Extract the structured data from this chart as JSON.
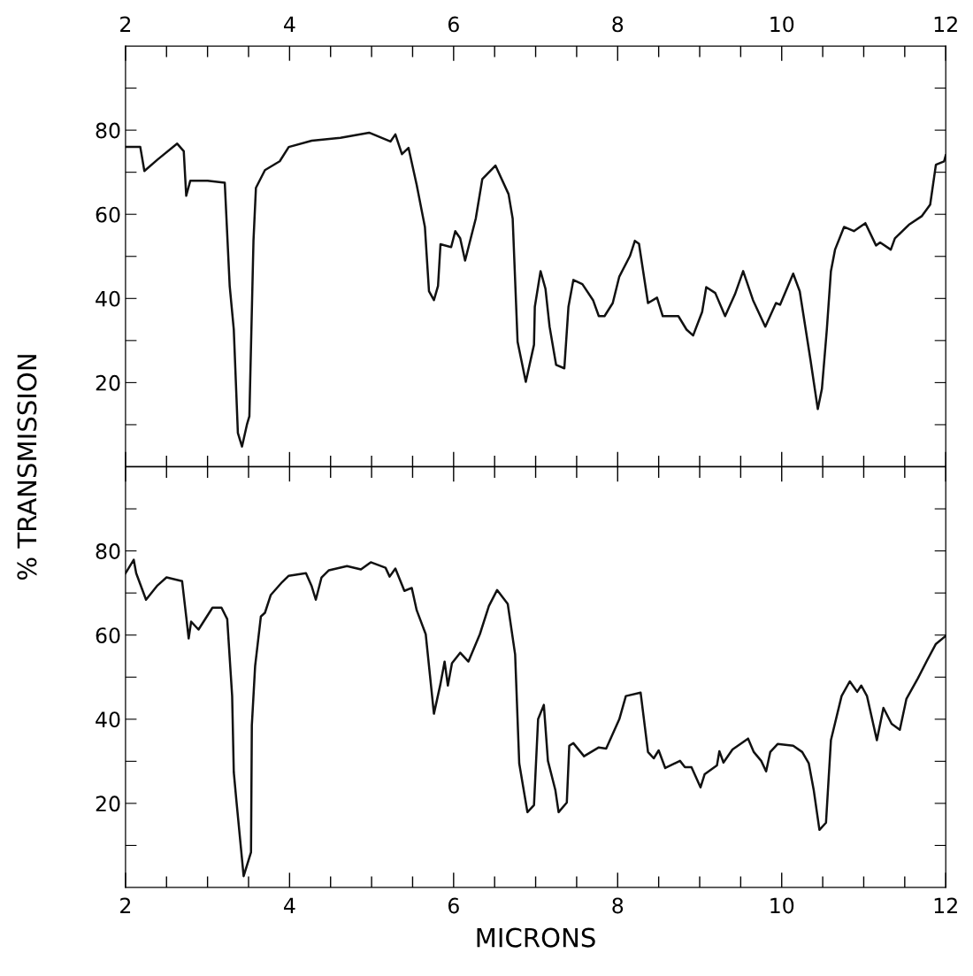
{
  "chart_data": [
    {
      "type": "line",
      "ylabel": "% TRANSMISSION",
      "xlim": [
        2,
        12
      ],
      "xticks": [
        2,
        {
          "value": 2.5,
          "label": null
        },
        {
          "value": 3,
          "label": null
        },
        {
          "value": 3.5,
          "label": null
        },
        4,
        {
          "value": 4.5,
          "label": null
        },
        {
          "value": 5,
          "label": null
        },
        {
          "value": 5.5,
          "label": null
        },
        6,
        {
          "value": 6.5,
          "label": null
        },
        {
          "value": 7,
          "label": null
        },
        {
          "value": 7.5,
          "label": null
        },
        8,
        {
          "value": 8.5,
          "label": null
        },
        {
          "value": 9,
          "label": null
        },
        {
          "value": 9.5,
          "label": null
        },
        10,
        {
          "value": 10.5,
          "label": null
        },
        {
          "value": 11,
          "label": null
        },
        {
          "value": 11.5,
          "label": null
        },
        12
      ],
      "ylim": [
        0,
        100
      ],
      "yticks": [
        {
          "value": 10,
          "label": null
        },
        20,
        {
          "value": 30,
          "label": null
        },
        40,
        {
          "value": 50,
          "label": null
        },
        60,
        {
          "value": 70,
          "label": null
        },
        80,
        {
          "value": 90,
          "label": null
        }
      ],
      "line_style": "solid",
      "series": [
        {
          "color": "#111111",
          "x": [
            2.0,
            2.18,
            2.23,
            2.39,
            2.63,
            2.71,
            2.74,
            2.79,
            3.0,
            3.21,
            3.27,
            3.32,
            3.37,
            3.42,
            3.48,
            3.51,
            3.56,
            3.59,
            3.7,
            3.88,
            3.99,
            4.27,
            4.62,
            4.97,
            5.23,
            5.29,
            5.37,
            5.45,
            5.55,
            5.65,
            5.7,
            5.76,
            5.81,
            5.84,
            5.97,
            6.02,
            6.08,
            6.14,
            6.27,
            6.35,
            6.51,
            6.67,
            6.72,
            6.78,
            6.88,
            6.98,
            6.99,
            7.06,
            7.12,
            7.17,
            7.25,
            7.35,
            7.4,
            7.46,
            7.57,
            7.7,
            7.77,
            7.84,
            7.94,
            8.02,
            8.15,
            8.21,
            8.26,
            8.37,
            8.48,
            8.55,
            8.74,
            8.84,
            8.92,
            9.03,
            9.08,
            9.19,
            9.31,
            9.43,
            9.53,
            9.65,
            9.8,
            9.93,
            9.98,
            10.14,
            10.22,
            10.35,
            10.44,
            10.49,
            10.55,
            10.6,
            10.65,
            10.76,
            10.88,
            11.02,
            11.15,
            11.2,
            11.33,
            11.38,
            11.55,
            11.71,
            11.81,
            11.88,
            11.98,
            12.0
          ],
          "values": [
            76,
            76,
            70.3,
            73,
            76.8,
            75,
            64.4,
            68,
            68,
            67.5,
            43,
            32.6,
            8,
            4.8,
            10,
            12,
            53.7,
            66.3,
            70.5,
            72.6,
            76,
            77.5,
            78.2,
            79.4,
            77.3,
            79,
            74.3,
            75.8,
            67,
            57,
            41.7,
            39.6,
            43,
            52.9,
            52.2,
            56,
            54.3,
            49,
            59,
            68.4,
            71.6,
            64.8,
            59,
            29.7,
            20.2,
            29,
            38,
            46.5,
            42.3,
            33.3,
            24.2,
            23.4,
            38,
            44.4,
            43.4,
            39.6,
            35.8,
            35.8,
            38.9,
            45.2,
            50.1,
            53.7,
            53,
            38.9,
            40.2,
            35.8,
            35.8,
            32.6,
            31.2,
            36.8,
            42.7,
            41.3,
            35.8,
            41,
            46.5,
            39.6,
            33.3,
            38.9,
            38.5,
            45.9,
            41.7,
            25.5,
            13.7,
            18.5,
            32.6,
            46.5,
            51.6,
            57,
            56,
            57.9,
            52.6,
            53.3,
            51.6,
            54.3,
            57.5,
            59.6,
            62.3,
            71.8,
            72.6,
            74
          ]
        }
      ]
    },
    {
      "type": "line",
      "xlabel": "MICRONS",
      "xlim": [
        2,
        12
      ],
      "xticks": [
        2,
        {
          "value": 2.5,
          "label": null
        },
        {
          "value": 3,
          "label": null
        },
        {
          "value": 3.5,
          "label": null
        },
        4,
        {
          "value": 4.5,
          "label": null
        },
        {
          "value": 5,
          "label": null
        },
        {
          "value": 5.5,
          "label": null
        },
        6,
        {
          "value": 6.5,
          "label": null
        },
        {
          "value": 7,
          "label": null
        },
        {
          "value": 7.5,
          "label": null
        },
        8,
        {
          "value": 8.5,
          "label": null
        },
        {
          "value": 9,
          "label": null
        },
        {
          "value": 9.5,
          "label": null
        },
        10,
        {
          "value": 10.5,
          "label": null
        },
        {
          "value": 11,
          "label": null
        },
        {
          "value": 11.5,
          "label": null
        },
        12
      ],
      "ylim": [
        0,
        100
      ],
      "yticks": [
        {
          "value": 10,
          "label": null
        },
        20,
        {
          "value": 30,
          "label": null
        },
        40,
        {
          "value": 50,
          "label": null
        },
        60,
        {
          "value": 70,
          "label": null
        },
        80,
        {
          "value": 90,
          "label": null
        }
      ],
      "line_style": "solid",
      "series": [
        {
          "color": "#111111",
          "x": [
            2.0,
            2.1,
            2.13,
            2.25,
            2.39,
            2.5,
            2.69,
            2.74,
            2.77,
            2.8,
            2.89,
            3.06,
            3.17,
            3.24,
            3.3,
            3.32,
            3.35,
            3.44,
            3.53,
            3.54,
            3.58,
            3.65,
            3.7,
            3.77,
            3.91,
            3.99,
            4.2,
            4.27,
            4.32,
            4.39,
            4.48,
            4.7,
            4.87,
            4.99,
            5.17,
            5.22,
            5.29,
            5.4,
            5.49,
            5.55,
            5.66,
            5.76,
            5.84,
            5.89,
            5.93,
            5.98,
            6.08,
            6.18,
            6.32,
            6.43,
            6.53,
            6.66,
            6.75,
            6.8,
            6.9,
            6.98,
            7.03,
            7.1,
            7.15,
            7.24,
            7.28,
            7.38,
            7.41,
            7.46,
            7.59,
            7.77,
            7.86,
            8.02,
            8.1,
            8.28,
            8.37,
            8.44,
            8.5,
            8.58,
            8.76,
            8.82,
            8.9,
            9.01,
            9.06,
            9.21,
            9.24,
            9.29,
            9.4,
            9.59,
            9.66,
            9.75,
            9.81,
            9.86,
            9.95,
            10.14,
            10.25,
            10.33,
            10.39,
            10.46,
            10.54,
            10.6,
            10.73,
            10.83,
            10.92,
            10.97,
            11.04,
            11.16,
            11.24,
            11.34,
            11.44,
            11.52,
            11.66,
            11.77,
            11.88,
            12.0
          ],
          "values": [
            74.7,
            77.9,
            74.7,
            68.4,
            71.8,
            73.7,
            72.8,
            64.4,
            59.2,
            63.2,
            61.3,
            66.5,
            66.5,
            63.8,
            45.5,
            27.4,
            21,
            2.7,
            8.4,
            38.5,
            52.6,
            64.4,
            65.3,
            69.5,
            72.6,
            74.1,
            74.7,
            71.6,
            68.4,
            73.7,
            75.4,
            76.4,
            75.6,
            77.3,
            76,
            73.9,
            75.8,
            70.5,
            71.2,
            65.9,
            60.2,
            41.3,
            48.4,
            53.7,
            48,
            53.3,
            55.8,
            53.7,
            60.2,
            66.9,
            70.7,
            67.4,
            55.4,
            29.5,
            17.9,
            19.6,
            40,
            43.4,
            30.1,
            23.2,
            17.9,
            20.2,
            33.7,
            34.3,
            31.2,
            33.3,
            33,
            40,
            45.5,
            46.3,
            32.2,
            30.7,
            32.6,
            28.4,
            30.1,
            28.6,
            28.6,
            23.8,
            26.9,
            29,
            32.4,
            29.7,
            32.8,
            35.4,
            32.2,
            30.1,
            27.6,
            32.2,
            34.1,
            33.7,
            32.2,
            29.5,
            23.2,
            13.7,
            15.4,
            35,
            45.5,
            49,
            46.5,
            48,
            45.5,
            35,
            42.7,
            38.9,
            37.5,
            44.8,
            49.7,
            53.9,
            57.9,
            59.8
          ]
        }
      ]
    }
  ]
}
